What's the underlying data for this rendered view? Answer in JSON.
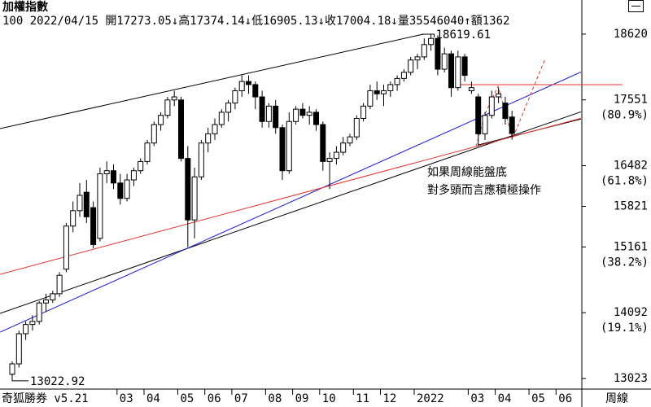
{
  "header": {
    "title": "加權指數",
    "quote": "100 2022/04/15 開17273.05↓高17374.14↓低16905.13↓收17004.18↓量35546040↑額1362"
  },
  "footer": {
    "software": "奇狐勝券 v5.21",
    "period": "周線"
  },
  "chart_data": {
    "type": "candlestick",
    "up_color": "#ffffff",
    "down_color": "#000000",
    "edge_color": "#000000",
    "categories": [
      null,
      null,
      null,
      null,
      null,
      null,
      null,
      null,
      null,
      null,
      null,
      null,
      null,
      null,
      null,
      null,
      "03",
      null,
      null,
      null,
      "04",
      null,
      null,
      null,
      null,
      "05",
      null,
      null,
      null,
      "06",
      null,
      null,
      null,
      "07",
      null,
      null,
      null,
      null,
      "08",
      null,
      null,
      null,
      "09",
      null,
      null,
      null,
      "10",
      null,
      null,
      null,
      null,
      "11",
      null,
      null,
      null,
      "12",
      null,
      null,
      null,
      null,
      "2022",
      null,
      null,
      null,
      null,
      null,
      null,
      null,
      "03",
      null,
      null,
      null,
      "04",
      null,
      null,
      null,
      null,
      "05",
      null,
      null,
      null,
      "06",
      null,
      null,
      null
    ],
    "open": [
      13090,
      13260,
      13750,
      13900,
      13950,
      14250,
      14300,
      14400,
      14800,
      15500,
      15750,
      16050,
      15800,
      15300,
      16350,
      16400,
      16200,
      15950,
      16250,
      16400,
      16550,
      16850,
      17150,
      17300,
      17550,
      17550,
      16600,
      15600,
      16300,
      16850,
      17000,
      17150,
      17350,
      17500,
      17700,
      17850,
      17800,
      17600,
      17200,
      17450,
      17100,
      16400,
      17200,
      17400,
      17300,
      17350,
      17150,
      16550,
      16600,
      16700,
      16850,
      16950,
      17250,
      17450,
      17700,
      17650,
      17700,
      17800,
      17900,
      18000,
      18200,
      18250,
      18450,
      18550,
      18050,
      18300,
      17750,
      18250,
      17700,
      17600,
      17000,
      17300,
      17600,
      17500,
      17273.05,
      null,
      null,
      null,
      null,
      null,
      null,
      null,
      null,
      null,
      null
    ],
    "high": [
      13300,
      13800,
      13950,
      14050,
      14280,
      14400,
      14450,
      14750,
      15550,
      15900,
      16200,
      16250,
      15900,
      16450,
      16550,
      16500,
      16350,
      16350,
      16450,
      16600,
      16900,
      17200,
      17350,
      17600,
      17700,
      17600,
      16800,
      16450,
      16900,
      17100,
      17250,
      17400,
      17550,
      17750,
      17950,
      17950,
      17850,
      17700,
      17500,
      17550,
      17150,
      17350,
      17450,
      17500,
      17450,
      17400,
      17200,
      16700,
      16800,
      16950,
      17000,
      17300,
      17500,
      17800,
      17850,
      17800,
      17850,
      17950,
      18050,
      18250,
      18300,
      18550,
      18619.61,
      18600,
      18400,
      18350,
      18350,
      18300,
      17850,
      17650,
      17350,
      17700,
      17750,
      17600,
      17374.14,
      null,
      null,
      null,
      null,
      null,
      null,
      null,
      null,
      null,
      null
    ],
    "low": [
      13022.92,
      13200,
      13650,
      13800,
      13900,
      14100,
      14250,
      14350,
      14750,
      15400,
      15650,
      15550,
      15140,
      15250,
      16200,
      16100,
      15850,
      15900,
      16150,
      16350,
      16500,
      16800,
      17050,
      17250,
      17450,
      16550,
      15160,
      15300,
      16250,
      16700,
      16900,
      17100,
      17200,
      17400,
      17600,
      17650,
      17400,
      17100,
      17100,
      17000,
      16250,
      16350,
      17150,
      17250,
      17150,
      17050,
      16400,
      16100,
      16500,
      16650,
      16800,
      16900,
      17200,
      17400,
      17550,
      17450,
      17600,
      17700,
      17850,
      17950,
      18050,
      18200,
      18350,
      17950,
      18000,
      17600,
      17700,
      17850,
      17650,
      16800,
      16900,
      17250,
      17500,
      17150,
      16905.13,
      null,
      null,
      null,
      null,
      null,
      null,
      null,
      null,
      null,
      null
    ],
    "close": [
      13260,
      13750,
      13900,
      13950,
      14250,
      14300,
      14400,
      14700,
      15500,
      15750,
      16000,
      15650,
      15200,
      16350,
      16400,
      16200,
      15950,
      16250,
      16400,
      16550,
      16850,
      17150,
      17300,
      17550,
      17600,
      16600,
      15600,
      16300,
      16850,
      17000,
      17150,
      17350,
      17500,
      17700,
      17850,
      17800,
      17600,
      17200,
      17450,
      17100,
      16400,
      17200,
      17400,
      17300,
      17350,
      17150,
      16550,
      16600,
      16700,
      16850,
      16950,
      17250,
      17450,
      17700,
      17650,
      17700,
      17800,
      17900,
      18000,
      18200,
      18250,
      18450,
      18550,
      18050,
      18300,
      17750,
      18250,
      17950,
      17750,
      17000,
      17300,
      17600,
      17650,
      17250,
      17004.18,
      null,
      null,
      null,
      null,
      null,
      null,
      null,
      null,
      null,
      null
    ],
    "ylim": [
      12850,
      19175
    ],
    "yticks": [
      18620,
      17551,
      16482,
      15821,
      15161,
      14092,
      13023
    ],
    "ytick_notes": [
      {
        "value": 17551,
        "label": "(80.9%)"
      },
      {
        "value": 16482,
        "label": "(61.8%)"
      },
      {
        "value": 15161,
        "label": "(38.2%)"
      },
      {
        "value": 14092,
        "label": "(19.1%)"
      }
    ],
    "annotations": [
      "如果周線能盤底",
      "對多頭而言應積極操作"
    ],
    "annotation_color": "#e8322c"
  }
}
